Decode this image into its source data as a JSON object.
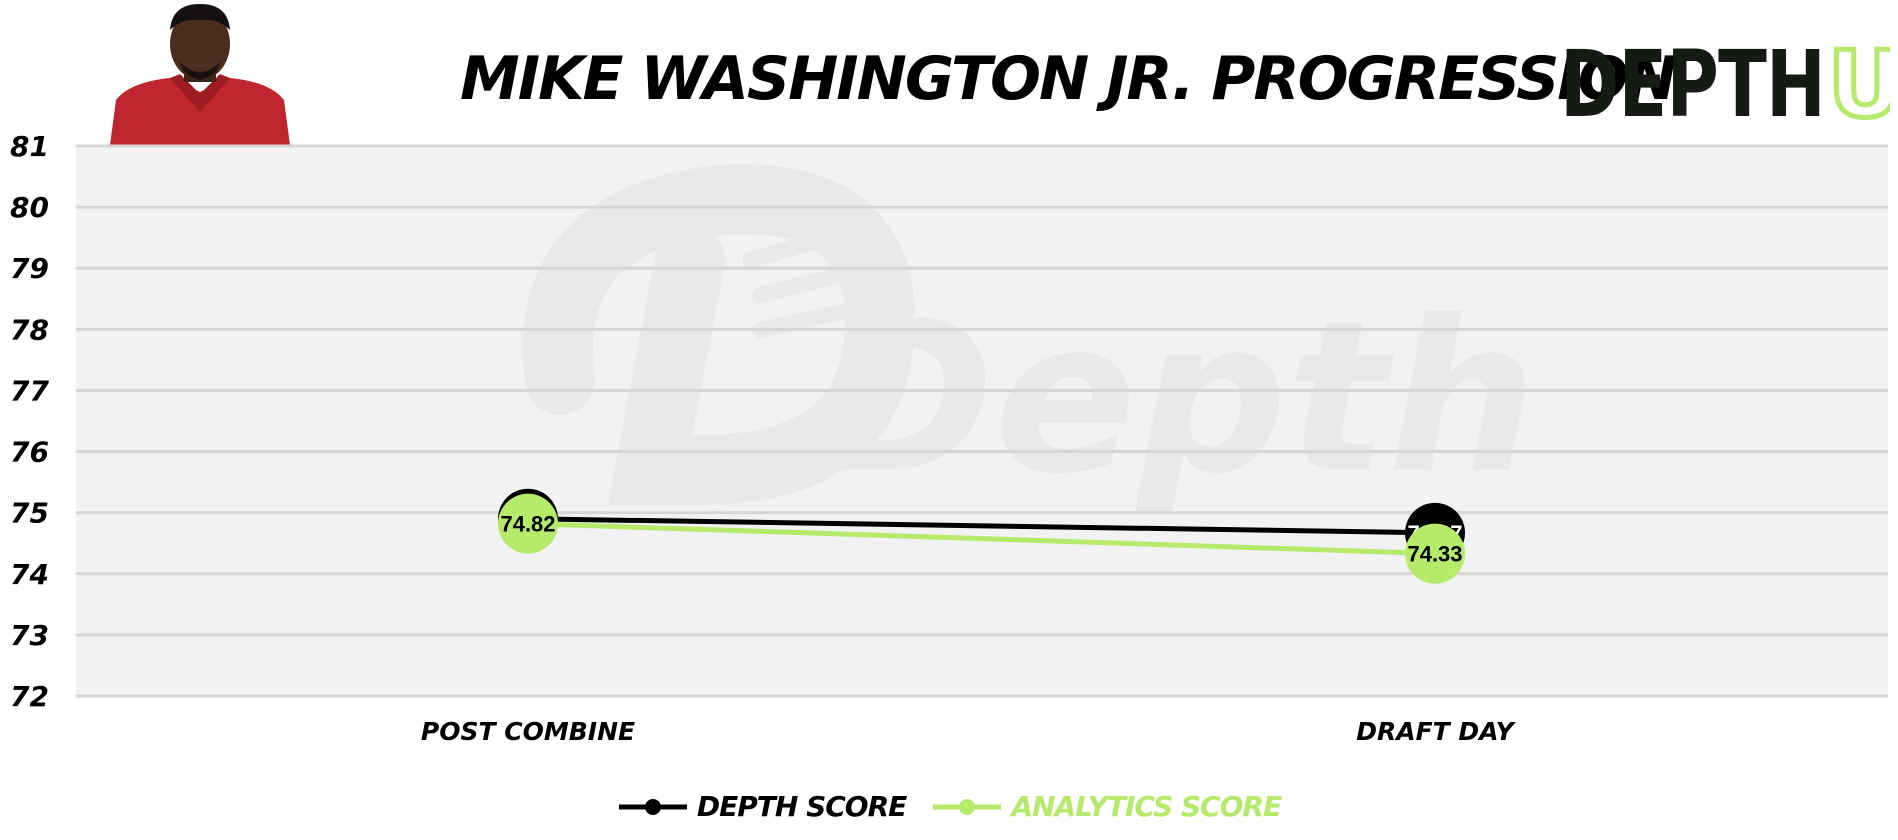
{
  "header": {
    "title": "MIKE WASHINGTON JR. PROGRESSION",
    "logo_text_dark": "DEPTH",
    "logo_text_accent": "U"
  },
  "watermark": {
    "text": "Depth"
  },
  "colors": {
    "depth_series": "#000000",
    "analytics_series": "#b5ea6a",
    "plot_background": "#f2f2f2",
    "gridline": "#d6d6d6",
    "jersey": "#c0262d"
  },
  "chart_data": {
    "type": "line",
    "title": "MIKE WASHINGTON JR. PROGRESSION",
    "categories": [
      "POST COMBINE",
      "DRAFT DAY"
    ],
    "ylim": [
      72,
      81
    ],
    "yticks": [
      "72",
      "73",
      "74",
      "75",
      "76",
      "77",
      "78",
      "79",
      "80",
      "81"
    ],
    "grid": true,
    "legend_position": "bottom-center",
    "series": [
      {
        "name": "DEPTH SCORE",
        "values": [
          74.9,
          74.67
        ],
        "labels": [
          "74.9",
          "74.67"
        ],
        "color": "#000000"
      },
      {
        "name": "ANALYTICS SCORE",
        "values": [
          74.82,
          74.33
        ],
        "labels": [
          "74.82",
          "74.33"
        ],
        "color": "#b5ea6a"
      }
    ]
  }
}
